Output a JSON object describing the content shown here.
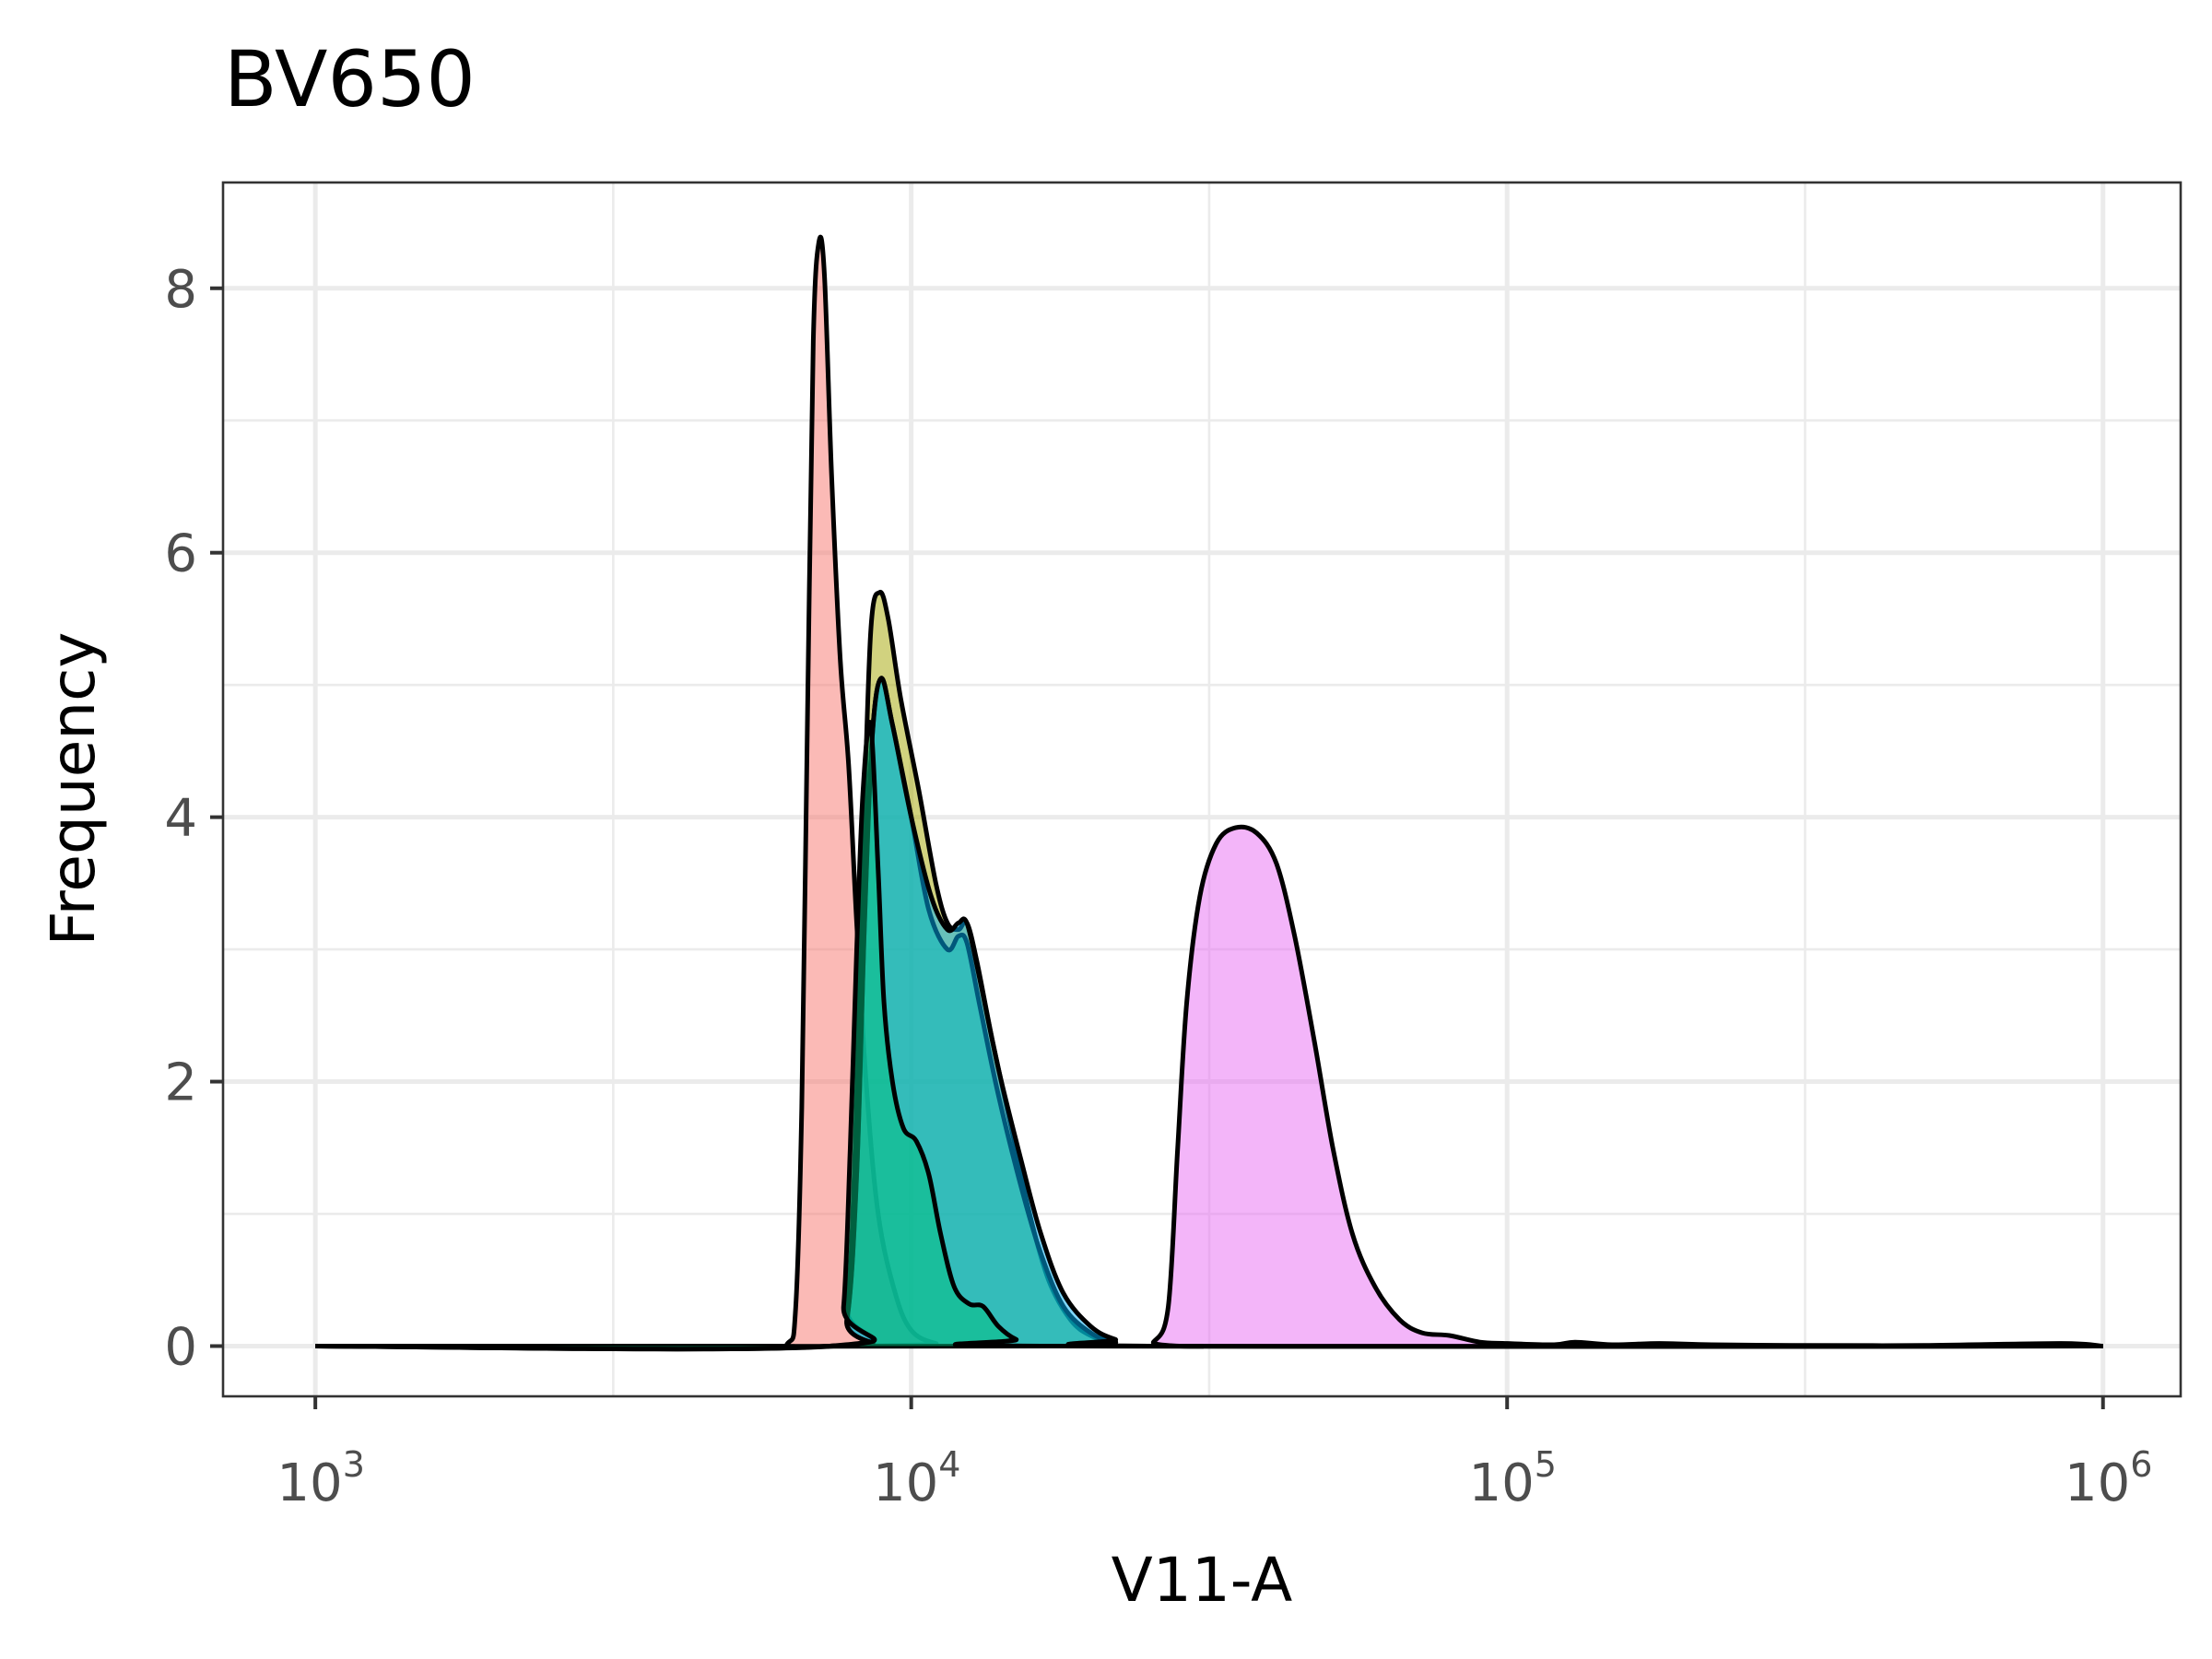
{
  "chart_data": {
    "type": "area",
    "title": "BV650",
    "xlabel": "V11-A",
    "ylabel": "Frequency",
    "x_scale": "log10",
    "xlim": [
      700,
      1350000
    ],
    "ylim": [
      -0.38,
      8.8
    ],
    "x_ticks": [
      {
        "value": 1000,
        "base": "10",
        "exp": "3"
      },
      {
        "value": 10000,
        "base": "10",
        "exp": "4"
      },
      {
        "value": 100000,
        "base": "10",
        "exp": "5"
      },
      {
        "value": 1000000,
        "base": "10",
        "exp": "6"
      }
    ],
    "x_minor_ticks": [
      3162,
      31623,
      316228
    ],
    "y_ticks": [
      0,
      2,
      4,
      6,
      8
    ],
    "y_minor_ticks": [
      1,
      3,
      5,
      7
    ],
    "grid": true,
    "legend": "none",
    "series": [
      {
        "color": "#F8766D",
        "fill_opacity": 0.5,
        "points": [
          [
            1000,
            0
          ],
          [
            5500,
            0
          ],
          [
            6200,
            0.02
          ],
          [
            6400,
            0.3
          ],
          [
            6550,
            1.8
          ],
          [
            6700,
            4.8
          ],
          [
            6850,
            7.6
          ],
          [
            7000,
            8.35
          ],
          [
            7150,
            8.1
          ],
          [
            7350,
            6.6
          ],
          [
            7600,
            5.2
          ],
          [
            7850,
            4.4
          ],
          [
            8100,
            3.2
          ],
          [
            8400,
            2.0
          ],
          [
            8800,
            1.0
          ],
          [
            9400,
            0.4
          ],
          [
            10000,
            0.12
          ],
          [
            11000,
            0.02
          ],
          [
            12500,
            0
          ],
          [
            1000000,
            0
          ]
        ]
      },
      {
        "color": "#A3A500",
        "fill_opacity": 0.5,
        "points": [
          [
            1000,
            0
          ],
          [
            7300,
            0
          ],
          [
            7800,
            0.3
          ],
          [
            8050,
            1.5
          ],
          [
            8300,
            3.7
          ],
          [
            8550,
            5.4
          ],
          [
            8850,
            5.7
          ],
          [
            9150,
            5.5
          ],
          [
            9600,
            4.9
          ],
          [
            10300,
            4.2
          ],
          [
            11000,
            3.5
          ],
          [
            11500,
            3.2
          ],
          [
            12000,
            3.15
          ],
          [
            12400,
            3.2
          ],
          [
            12900,
            2.9
          ],
          [
            13700,
            2.3
          ],
          [
            14800,
            1.6
          ],
          [
            15800,
            1.0
          ],
          [
            17000,
            0.5
          ],
          [
            18500,
            0.2
          ],
          [
            20000,
            0.08
          ],
          [
            22000,
            0.03
          ],
          [
            25000,
            0
          ],
          [
            1000000,
            0
          ]
        ]
      },
      {
        "color": "#00BF7D",
        "fill_opacity": 0.5,
        "points": [
          [
            1000,
            0
          ],
          [
            7300,
            0
          ],
          [
            7800,
            0.2
          ],
          [
            8100,
            1.3
          ],
          [
            8350,
            3.2
          ],
          [
            8600,
            4.6
          ],
          [
            8900,
            5.05
          ],
          [
            9300,
            4.7
          ],
          [
            10000,
            4.0
          ],
          [
            10700,
            3.3
          ],
          [
            11500,
            3.0
          ],
          [
            12000,
            3.1
          ],
          [
            12400,
            3.05
          ],
          [
            13000,
            2.6
          ],
          [
            14000,
            1.9
          ],
          [
            15300,
            1.2
          ],
          [
            16500,
            0.7
          ],
          [
            18000,
            0.3
          ],
          [
            20000,
            0.1
          ],
          [
            22000,
            0.03
          ],
          [
            25000,
            0
          ],
          [
            1000000,
            0
          ]
        ]
      },
      {
        "color": "#00B0F6",
        "fill_opacity": 0.5,
        "points": [
          [
            1000,
            0
          ],
          [
            7300,
            0
          ],
          [
            7800,
            0.2
          ],
          [
            8100,
            1.3
          ],
          [
            8350,
            3.2
          ],
          [
            8600,
            4.6
          ],
          [
            8900,
            5.05
          ],
          [
            9300,
            4.7
          ],
          [
            10000,
            4.0
          ],
          [
            10800,
            3.4
          ],
          [
            11500,
            3.15
          ],
          [
            12000,
            3.2
          ],
          [
            12400,
            3.2
          ],
          [
            13000,
            2.8
          ],
          [
            14000,
            2.1
          ],
          [
            15300,
            1.4
          ],
          [
            16500,
            0.85
          ],
          [
            18000,
            0.4
          ],
          [
            20000,
            0.15
          ],
          [
            22000,
            0.05
          ],
          [
            25000,
            0
          ],
          [
            1000000,
            0
          ]
        ]
      },
      {
        "color": "#E76BF3",
        "fill_opacity": 0.5,
        "points": [
          [
            1000,
            0
          ],
          [
            24000,
            0
          ],
          [
            25500,
            0.03
          ],
          [
            27000,
            0.3
          ],
          [
            28000,
            1.5
          ],
          [
            29000,
            2.6
          ],
          [
            30500,
            3.4
          ],
          [
            32500,
            3.8
          ],
          [
            35000,
            3.92
          ],
          [
            38000,
            3.88
          ],
          [
            41000,
            3.65
          ],
          [
            44000,
            3.1
          ],
          [
            47500,
            2.3
          ],
          [
            51000,
            1.5
          ],
          [
            55000,
            0.85
          ],
          [
            60000,
            0.45
          ],
          [
            66000,
            0.2
          ],
          [
            72000,
            0.1
          ],
          [
            80000,
            0.08
          ],
          [
            90000,
            0.03
          ],
          [
            100000,
            0.02
          ],
          [
            120000,
            0.01
          ],
          [
            130000,
            0.03
          ],
          [
            150000,
            0.01
          ],
          [
            180000,
            0.02
          ],
          [
            220000,
            0.01
          ],
          [
            300000,
            0.005
          ],
          [
            500000,
            0.005
          ],
          [
            850000,
            0.02
          ],
          [
            1000000,
            0
          ]
        ]
      },
      {
        "color": "#00BF7D",
        "fill_opacity": 0.5,
        "points": [
          [
            1000,
            0
          ],
          [
            7400,
            0
          ],
          [
            7700,
            0.3
          ],
          [
            7900,
            1.5
          ],
          [
            8100,
            3.0
          ],
          [
            8300,
            4.2
          ],
          [
            8550,
            4.7
          ],
          [
            8800,
            3.6
          ],
          [
            9000,
            2.6
          ],
          [
            9300,
            2.0
          ],
          [
            9700,
            1.65
          ],
          [
            10200,
            1.55
          ],
          [
            10700,
            1.3
          ],
          [
            11200,
            0.85
          ],
          [
            11800,
            0.45
          ],
          [
            12500,
            0.32
          ],
          [
            13200,
            0.3
          ],
          [
            14000,
            0.15
          ],
          [
            15000,
            0.05
          ],
          [
            16500,
            0
          ],
          [
            1000000,
            0
          ]
        ]
      }
    ]
  }
}
